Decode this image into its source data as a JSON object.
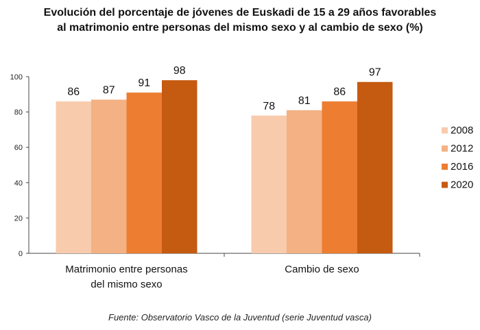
{
  "chart_data": {
    "type": "bar",
    "title_lines": [
      "Evolución del porcentaje de jóvenes de Euskadi de 15 a 29 años favorables",
      "al matrimonio entre personas del mismo sexo y al cambio de sexo (%)"
    ],
    "categories": [
      [
        "Matrimonio entre personas",
        "del mismo sexo"
      ],
      [
        "Cambio de sexo"
      ]
    ],
    "series": [
      {
        "name": "2008",
        "color": "#F8CBAD",
        "values": [
          86,
          78
        ]
      },
      {
        "name": "2012",
        "color": "#F4B183",
        "values": [
          87,
          81
        ]
      },
      {
        "name": "2016",
        "color": "#ED7D31",
        "values": [
          91,
          86
        ]
      },
      {
        "name": "2020",
        "color": "#C55A11",
        "values": [
          98,
          97
        ]
      }
    ],
    "ylim": [
      0,
      100
    ],
    "yticks": [
      "0",
      "20",
      "40",
      "60",
      "80",
      "100"
    ],
    "grid": false,
    "legend": "right",
    "source": "Fuente: Observatorio Vasco de la Juventud (serie Juventud vasca)"
  }
}
